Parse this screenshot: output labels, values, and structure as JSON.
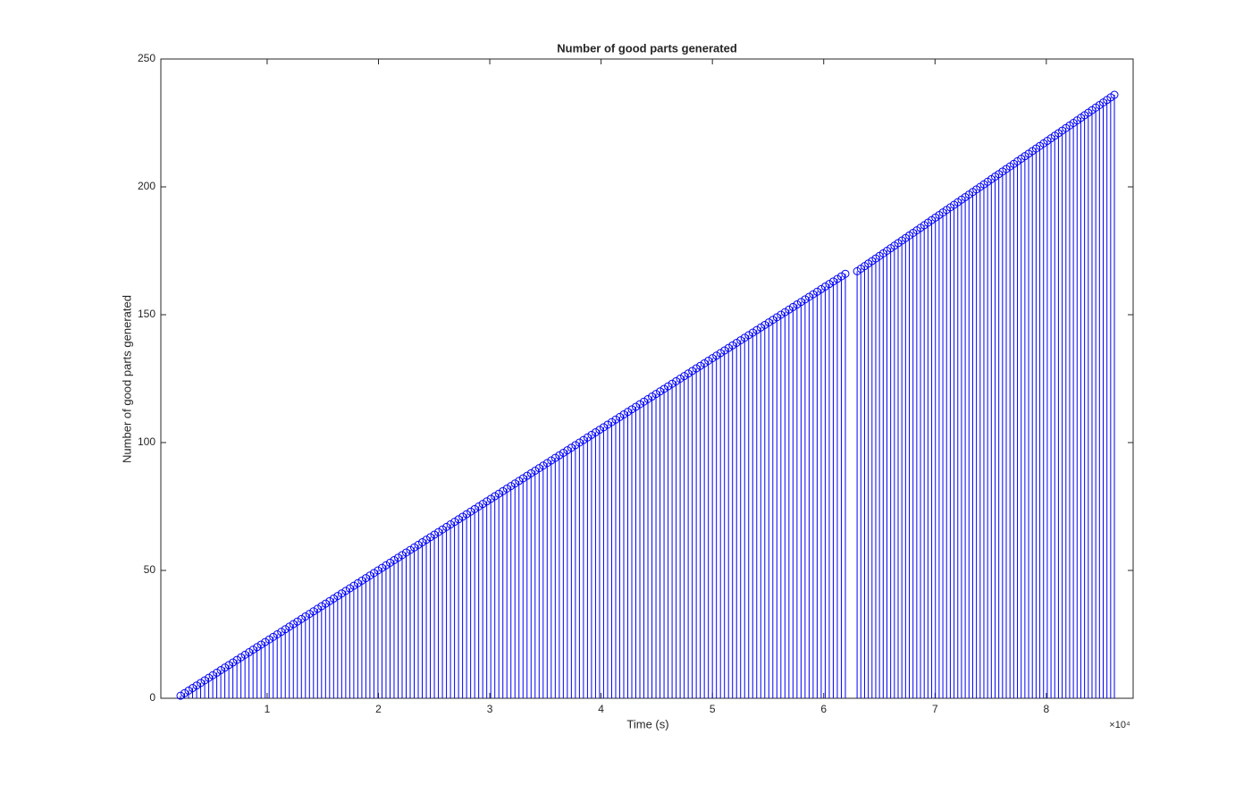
{
  "chart_data": {
    "type": "stem",
    "title": "Number of good parts generated",
    "xlabel": "Time (s)",
    "ylabel": "Number of good parts generated",
    "x_exponent_label": "×10⁴",
    "color": "#0000ff",
    "xlim": [
      450,
      87800
    ],
    "ylim": [
      0,
      250
    ],
    "xticks": [
      {
        "value": 10000,
        "label": "1"
      },
      {
        "value": 20000,
        "label": "2"
      },
      {
        "value": 30000,
        "label": "3"
      },
      {
        "value": 40000,
        "label": "4"
      },
      {
        "value": 50000,
        "label": "5"
      },
      {
        "value": 60000,
        "label": "6"
      },
      {
        "value": 70000,
        "label": "7"
      },
      {
        "value": 80000,
        "label": "8"
      }
    ],
    "yticks": [
      0,
      50,
      100,
      150,
      200,
      250
    ],
    "x": [
      2216,
      2578,
      2940,
      3302,
      3664,
      4026,
      4388,
      4750,
      5112,
      5474,
      5836,
      6198,
      6560,
      6922,
      7284,
      7646,
      8008,
      8370,
      8732,
      9094,
      9456,
      9818,
      10180,
      10542,
      10904,
      11266,
      11628,
      11990,
      12352,
      12714,
      13076,
      13438,
      13800,
      14162,
      14524,
      14886,
      15248,
      15610,
      15972,
      16334,
      16696,
      17058,
      17420,
      17782,
      18144,
      18506,
      18868,
      19230,
      19592,
      19954,
      20316,
      20678,
      21040,
      21402,
      21764,
      22126,
      22488,
      22850,
      23212,
      23574,
      23936,
      24298,
      24660,
      25022,
      25384,
      25746,
      26108,
      26470,
      26832,
      27194,
      27556,
      27918,
      28280,
      28642,
      29004,
      29366,
      29728,
      30090,
      30452,
      30814,
      31176,
      31538,
      31900,
      32262,
      32624,
      32986,
      33348,
      33710,
      34072,
      34434,
      34796,
      35158,
      35520,
      35882,
      36244,
      36606,
      36968,
      37330,
      37692,
      38054,
      38416,
      38778,
      39140,
      39502,
      39864,
      40226,
      40588,
      40950,
      41312,
      41674,
      42036,
      42398,
      42760,
      43122,
      43484,
      43846,
      44208,
      44570,
      44932,
      45294,
      45656,
      46018,
      46380,
      46742,
      47104,
      47466,
      47828,
      48190,
      48552,
      48914,
      49276,
      49638,
      50000,
      50362,
      50724,
      51086,
      51448,
      51810,
      52172,
      52534,
      52896,
      53258,
      53620,
      53982,
      54344,
      54706,
      55068,
      55430,
      55792,
      56154,
      56516,
      56878,
      57240,
      57602,
      57964,
      58326,
      58688,
      59050,
      59412,
      59774,
      60136,
      60498,
      60860,
      61222,
      61584,
      61946,
      63000,
      63335,
      63670,
      64005,
      64340,
      64675,
      65010,
      65345,
      65680,
      66015,
      66350,
      66685,
      67020,
      67355,
      67690,
      68025,
      68360,
      68695,
      69030,
      69365,
      69700,
      70035,
      70370,
      70705,
      71040,
      71375,
      71710,
      72045,
      72380,
      72715,
      73050,
      73385,
      73720,
      74055,
      74390,
      74725,
      75060,
      75395,
      75730,
      76065,
      76400,
      76735,
      77070,
      77405,
      77740,
      78075,
      78410,
      78745,
      79080,
      79415,
      79750,
      80085,
      80420,
      80755,
      81090,
      81425,
      81760,
      82095,
      82430,
      82765,
      83100,
      83435,
      83770,
      84105,
      84440,
      84775,
      85110,
      85445,
      85780,
      86115
    ],
    "values": [
      1,
      2,
      3,
      4,
      5,
      6,
      7,
      8,
      9,
      10,
      11,
      12,
      13,
      14,
      15,
      16,
      17,
      18,
      19,
      20,
      21,
      22,
      23,
      24,
      25,
      26,
      27,
      28,
      29,
      30,
      31,
      32,
      33,
      34,
      35,
      36,
      37,
      38,
      39,
      40,
      41,
      42,
      43,
      44,
      45,
      46,
      47,
      48,
      49,
      50,
      51,
      52,
      53,
      54,
      55,
      56,
      57,
      58,
      59,
      60,
      61,
      62,
      63,
      64,
      65,
      66,
      67,
      68,
      69,
      70,
      71,
      72,
      73,
      74,
      75,
      76,
      77,
      78,
      79,
      80,
      81,
      82,
      83,
      84,
      85,
      86,
      87,
      88,
      89,
      90,
      91,
      92,
      93,
      94,
      95,
      96,
      97,
      98,
      99,
      100,
      101,
      102,
      103,
      104,
      105,
      106,
      107,
      108,
      109,
      110,
      111,
      112,
      113,
      114,
      115,
      116,
      117,
      118,
      119,
      120,
      121,
      122,
      123,
      124,
      125,
      126,
      127,
      128,
      129,
      130,
      131,
      132,
      133,
      134,
      135,
      136,
      137,
      138,
      139,
      140,
      141,
      142,
      143,
      144,
      145,
      146,
      147,
      148,
      149,
      150,
      151,
      152,
      153,
      154,
      155,
      156,
      157,
      158,
      159,
      160,
      161,
      162,
      163,
      164,
      165,
      166,
      167,
      168,
      169,
      170,
      171,
      172,
      173,
      174,
      175,
      176,
      177,
      178,
      179,
      180,
      181,
      182,
      183,
      184,
      185,
      186,
      187,
      188,
      189,
      190,
      191,
      192,
      193,
      194,
      195,
      196,
      197,
      198,
      199,
      200,
      201,
      202,
      203,
      204,
      205,
      206,
      207,
      208,
      209,
      210,
      211,
      212,
      213,
      214,
      215,
      216,
      217,
      218,
      219,
      220,
      221,
      222,
      223,
      224,
      225,
      226,
      227,
      228,
      229,
      230,
      231,
      232,
      233,
      234,
      235,
      236
    ]
  }
}
